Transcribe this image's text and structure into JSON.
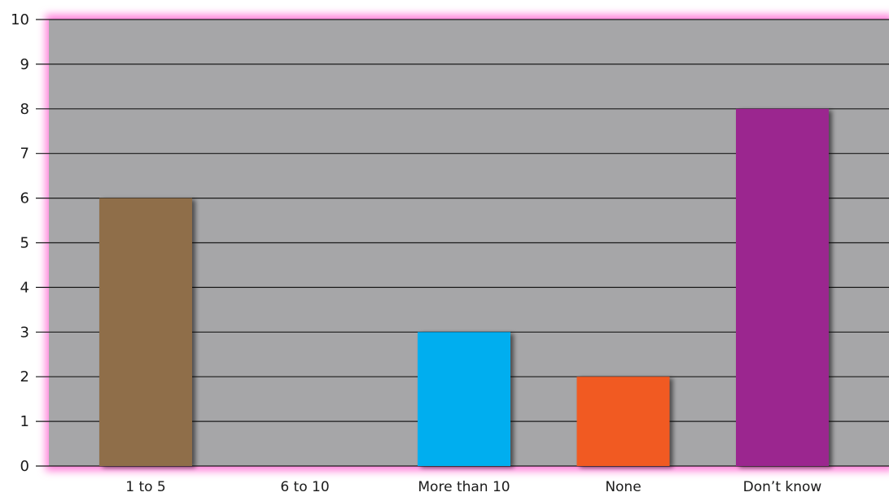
{
  "chart_data": {
    "type": "bar",
    "title": "",
    "xlabel": "",
    "ylabel": "",
    "categories": [
      "1 to 5",
      "6 to 10",
      "More than 10",
      "None",
      "Don’t know"
    ],
    "values": [
      6,
      0,
      3,
      2,
      8
    ],
    "ylim": [
      0,
      10
    ],
    "yticks": [
      "0",
      "1",
      "2",
      "3",
      "4",
      "5",
      "6",
      "7",
      "8",
      "9",
      "10"
    ],
    "grid": true,
    "legend": "none",
    "colors": [
      "#8f6e48",
      "#8f6e48",
      "#00aeef",
      "#f15a24",
      "#9b278f"
    ],
    "plot_background": "#a6a6a8",
    "glow_color": "#ff7fd9"
  }
}
